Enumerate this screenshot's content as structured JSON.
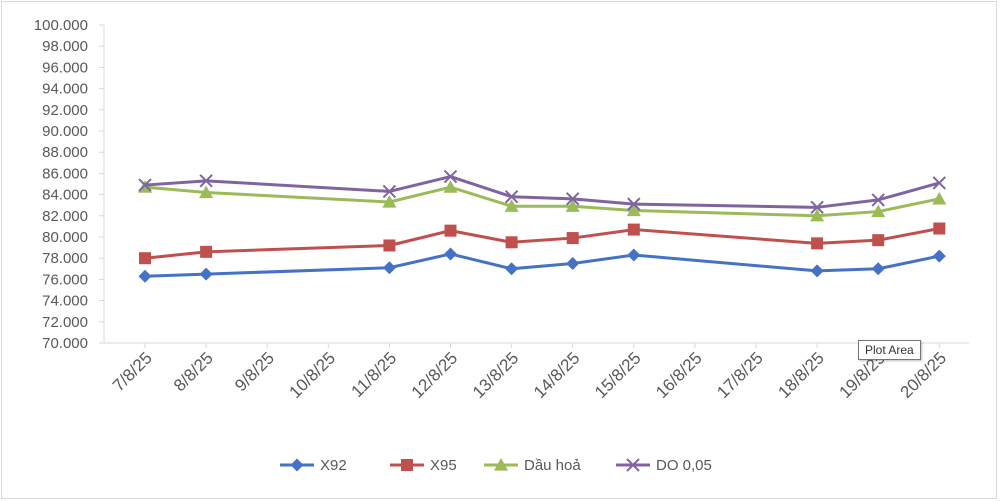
{
  "chart_data": {
    "type": "line",
    "title": "",
    "xlabel": "",
    "ylabel": "",
    "categories": [
      "7/8/25",
      "8/8/25",
      "9/8/25",
      "10/8/25",
      "11/8/25",
      "12/8/25",
      "13/8/25",
      "14/8/25",
      "15/8/25",
      "16/8/25",
      "17/8/25",
      "18/8/25",
      "19/8/25",
      "20/8/25"
    ],
    "ylim": [
      70000,
      100000
    ],
    "ystep": 2000,
    "y_tick_labels": [
      "70.000",
      "72.000",
      "74.000",
      "76.000",
      "78.000",
      "80.000",
      "82.000",
      "84.000",
      "86.000",
      "88.000",
      "90.000",
      "92.000",
      "94.000",
      "96.000",
      "98.000",
      "100.000"
    ],
    "grid": false,
    "legend_position": "bottom",
    "series": [
      {
        "name": "X92",
        "color": "#4472c4",
        "marker": "diamond",
        "values": [
          76300,
          76500,
          null,
          null,
          77100,
          78400,
          77000,
          77500,
          78300,
          null,
          null,
          76800,
          77000,
          78200
        ]
      },
      {
        "name": "X95",
        "color": "#c0504d",
        "marker": "square",
        "values": [
          78000,
          78600,
          null,
          null,
          79200,
          80600,
          79500,
          79900,
          80700,
          null,
          null,
          79400,
          79700,
          80800
        ]
      },
      {
        "name": "Dầu hoả",
        "color": "#9bbb59",
        "marker": "triangle",
        "values": [
          84700,
          84200,
          null,
          null,
          83300,
          84700,
          82900,
          82900,
          82500,
          null,
          null,
          82000,
          82400,
          83600
        ]
      },
      {
        "name": "DO 0,05",
        "color": "#8064a2",
        "marker": "x",
        "values": [
          84900,
          85300,
          null,
          null,
          84300,
          85700,
          83800,
          83600,
          83100,
          null,
          null,
          82800,
          83500,
          85100
        ]
      }
    ]
  },
  "tooltip": {
    "text": "Plot Area"
  }
}
